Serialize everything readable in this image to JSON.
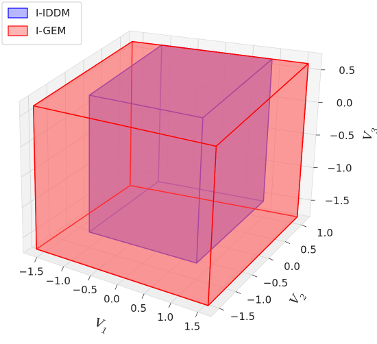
{
  "chart_data": {
    "type": "3d-box",
    "title": "",
    "axes": {
      "x": {
        "label": "V",
        "label_sub": "1",
        "range": [
          -1.75,
          1.75
        ],
        "ticks": [
          "-1.5",
          "-1.0",
          "-0.5",
          "0.0",
          "0.5",
          "1.0",
          "1.5"
        ]
      },
      "y": {
        "label": "V",
        "label_sub": "2",
        "range": [
          -1.75,
          1.25
        ],
        "ticks": [
          "-1.5",
          "-1.0",
          "-0.5",
          "0.0",
          "0.5",
          "1.0"
        ]
      },
      "z": {
        "label": "V",
        "label_sub": "3",
        "range": [
          -1.75,
          0.75
        ],
        "ticks": [
          "-1.5",
          "-1.0",
          "-0.5",
          "0.0",
          "0.5"
        ]
      }
    },
    "grid": true,
    "legend": {
      "placement": "top-left"
    },
    "series": [
      {
        "name": "I-IDDM",
        "color": "#0000ff",
        "fill": "#6f6fff",
        "x": [
          -1.0,
          1.0
        ],
        "y": [
          -1.0,
          1.0
        ],
        "z": [
          -1.5,
          0.7
        ]
      },
      {
        "name": "I-GEM",
        "color": "#ff0000",
        "fill": "#ff6a6a",
        "x": [
          -1.6,
          1.6
        ],
        "y": [
          -1.6,
          1.1
        ],
        "z": [
          -1.7,
          0.65
        ]
      }
    ]
  }
}
